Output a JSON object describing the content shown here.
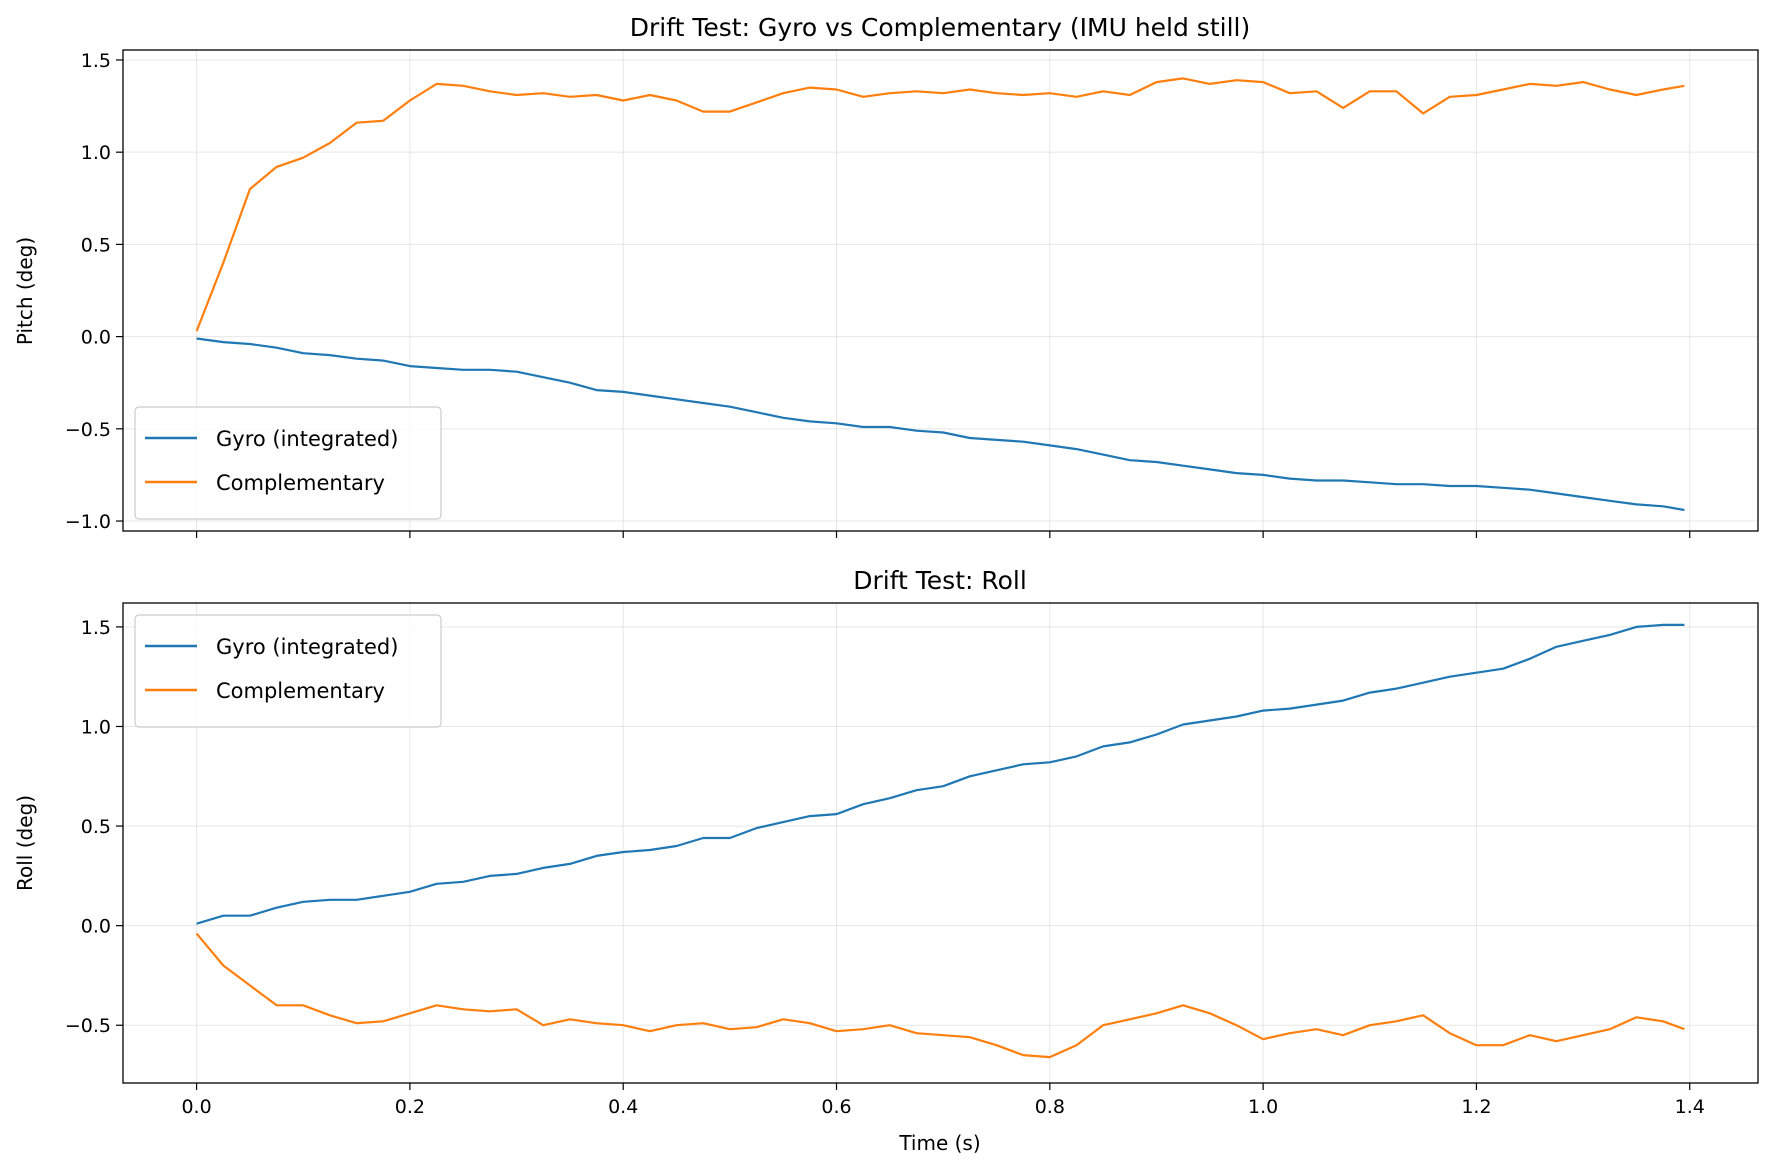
{
  "chart_data": [
    {
      "type": "line",
      "title": "Drift Test: Gyro vs Complementary (IMU held still)",
      "xlabel": "",
      "ylabel": "Pitch (deg)",
      "xlim": [
        -0.069,
        1.464
      ],
      "ylim": [
        -1.054,
        1.554
      ],
      "xticks": [
        0.0,
        0.2,
        0.4,
        0.6,
        0.8,
        1.0,
        1.2,
        1.4
      ],
      "xtick_labels_visible": false,
      "yticks": [
        -1.0,
        -0.5,
        0.0,
        0.5,
        1.0,
        1.5
      ],
      "ytick_labels": [
        "−1.0",
        "−0.5",
        "0.0",
        "0.5",
        "1.0",
        "1.5"
      ],
      "grid": true,
      "legend": "lower-left",
      "series": [
        {
          "name": "Gyro (integrated)",
          "color": "#1f77b4",
          "values": [
            -0.01,
            -0.03,
            -0.04,
            -0.06,
            -0.09,
            -0.1,
            -0.12,
            -0.13,
            -0.16,
            -0.17,
            -0.18,
            -0.18,
            -0.19,
            -0.22,
            -0.25,
            -0.29,
            -0.3,
            -0.32,
            -0.34,
            -0.36,
            -0.38,
            -0.41,
            -0.44,
            -0.46,
            -0.47,
            -0.49,
            -0.49,
            -0.51,
            -0.52,
            -0.55,
            -0.56,
            -0.57,
            -0.59,
            -0.61,
            -0.64,
            -0.67,
            -0.68,
            -0.7,
            -0.72,
            -0.74,
            -0.75,
            -0.77,
            -0.78,
            -0.78,
            -0.79,
            -0.8,
            -0.8,
            -0.81,
            -0.81,
            -0.82,
            -0.83,
            -0.85,
            -0.87,
            -0.89,
            -0.91,
            -0.92,
            -0.94
          ]
        },
        {
          "name": "Complementary",
          "color": "#ff7f0e",
          "values": [
            0.03,
            0.4,
            0.8,
            0.92,
            0.97,
            1.05,
            1.16,
            1.17,
            1.28,
            1.37,
            1.36,
            1.33,
            1.31,
            1.32,
            1.3,
            1.31,
            1.28,
            1.31,
            1.28,
            1.22,
            1.22,
            1.27,
            1.32,
            1.35,
            1.34,
            1.3,
            1.32,
            1.33,
            1.32,
            1.34,
            1.32,
            1.31,
            1.32,
            1.3,
            1.33,
            1.31,
            1.38,
            1.4,
            1.37,
            1.39,
            1.38,
            1.32,
            1.33,
            1.24,
            1.33,
            1.33,
            1.21,
            1.3,
            1.31,
            1.34,
            1.37,
            1.36,
            1.38,
            1.34,
            1.31,
            1.34,
            1.36
          ]
        }
      ]
    },
    {
      "type": "line",
      "title": "Drift Test: Roll",
      "xlabel": "Time (s)",
      "ylabel": "Roll (deg)",
      "xlim": [
        -0.069,
        1.464
      ],
      "ylim": [
        -0.79,
        1.62
      ],
      "xticks": [
        0.0,
        0.2,
        0.4,
        0.6,
        0.8,
        1.0,
        1.2,
        1.4
      ],
      "xtick_labels": [
        "0.0",
        "0.2",
        "0.4",
        "0.6",
        "0.8",
        "1.0",
        "1.2",
        "1.4"
      ],
      "yticks": [
        -0.5,
        0.0,
        0.5,
        1.0,
        1.5
      ],
      "ytick_labels": [
        "−0.5",
        "0.0",
        "0.5",
        "1.0",
        "1.5"
      ],
      "grid": true,
      "legend": "upper-left",
      "series": [
        {
          "name": "Gyro (integrated)",
          "color": "#1f77b4",
          "values": [
            0.01,
            0.05,
            0.05,
            0.09,
            0.12,
            0.13,
            0.13,
            0.15,
            0.17,
            0.21,
            0.22,
            0.25,
            0.26,
            0.29,
            0.31,
            0.35,
            0.37,
            0.38,
            0.4,
            0.44,
            0.44,
            0.49,
            0.52,
            0.55,
            0.56,
            0.61,
            0.64,
            0.68,
            0.7,
            0.75,
            0.78,
            0.81,
            0.82,
            0.85,
            0.9,
            0.92,
            0.96,
            1.01,
            1.03,
            1.05,
            1.08,
            1.09,
            1.11,
            1.13,
            1.17,
            1.19,
            1.22,
            1.25,
            1.27,
            1.29,
            1.34,
            1.4,
            1.43,
            1.46,
            1.5,
            1.51,
            1.51
          ]
        },
        {
          "name": "Complementary",
          "color": "#ff7f0e",
          "values": [
            -0.04,
            -0.2,
            -0.3,
            -0.4,
            -0.4,
            -0.45,
            -0.49,
            -0.48,
            -0.44,
            -0.4,
            -0.42,
            -0.43,
            -0.42,
            -0.5,
            -0.47,
            -0.49,
            -0.5,
            -0.53,
            -0.5,
            -0.49,
            -0.52,
            -0.51,
            -0.47,
            -0.49,
            -0.53,
            -0.52,
            -0.5,
            -0.54,
            -0.55,
            -0.56,
            -0.6,
            -0.65,
            -0.66,
            -0.6,
            -0.5,
            -0.47,
            -0.44,
            -0.4,
            -0.44,
            -0.5,
            -0.57,
            -0.54,
            -0.52,
            -0.55,
            -0.5,
            -0.48,
            -0.45,
            -0.54,
            -0.6,
            -0.6,
            -0.55,
            -0.58,
            -0.55,
            -0.52,
            -0.46,
            -0.48,
            -0.52
          ]
        }
      ]
    }
  ],
  "time": [
    0,
    0.025,
    0.05,
    0.075,
    0.1,
    0.125,
    0.15,
    0.175,
    0.2,
    0.225,
    0.25,
    0.275,
    0.3,
    0.325,
    0.35,
    0.375,
    0.4,
    0.425,
    0.45,
    0.475,
    0.5,
    0.525,
    0.55,
    0.575,
    0.6,
    0.625,
    0.65,
    0.675,
    0.7,
    0.725,
    0.75,
    0.775,
    0.8,
    0.825,
    0.85,
    0.875,
    0.9,
    0.925,
    0.95,
    0.975,
    1.0,
    1.025,
    1.05,
    1.075,
    1.1,
    1.125,
    1.15,
    1.175,
    1.2,
    1.225,
    1.25,
    1.275,
    1.3,
    1.325,
    1.35,
    1.375,
    1.395
  ]
}
